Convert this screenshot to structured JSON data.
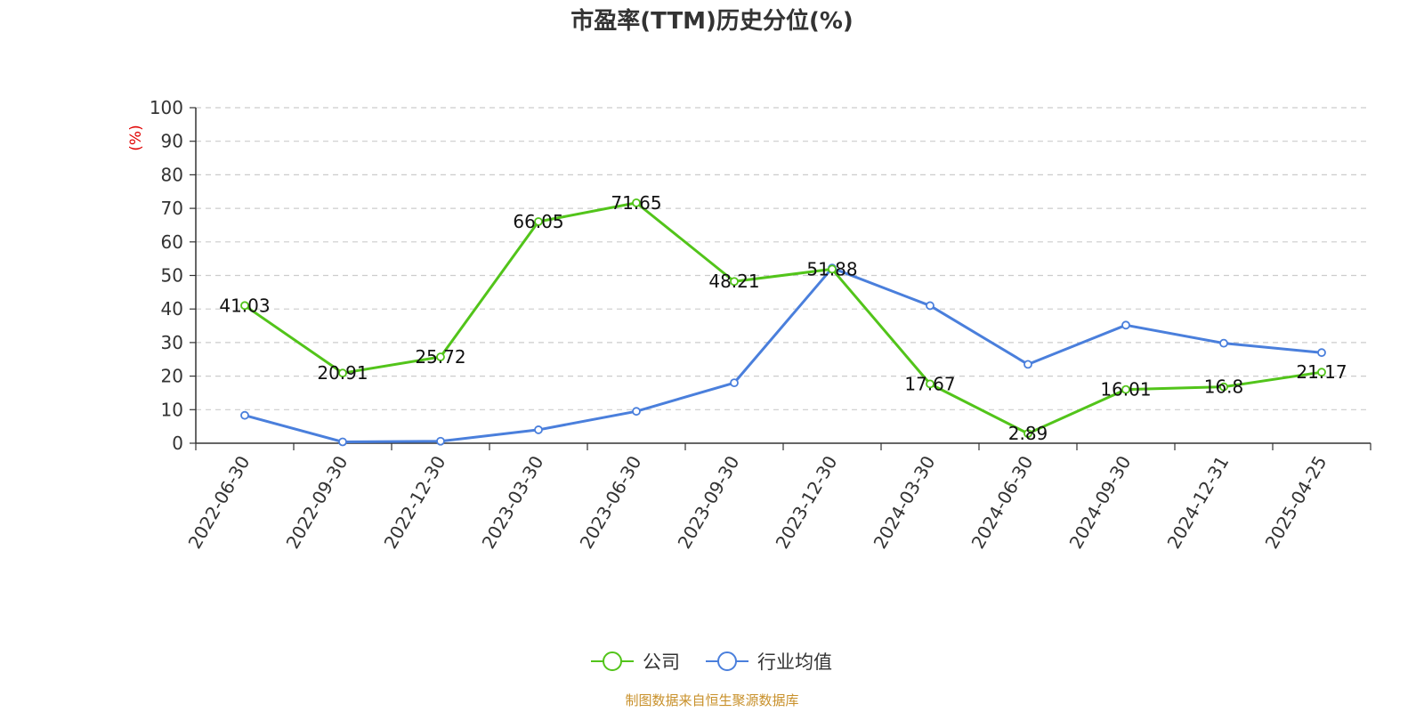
{
  "chart_data": {
    "type": "line",
    "title": "市盈率(TTM)历史分位(%)",
    "ylabel": "(%)",
    "ylim": [
      0,
      100
    ],
    "yticks": [
      0,
      10,
      20,
      30,
      40,
      50,
      60,
      70,
      80,
      90,
      100
    ],
    "grid": true,
    "legend_position": "bottom",
    "categories": [
      "2022-06-30",
      "2022-09-30",
      "2022-12-30",
      "2023-03-30",
      "2023-06-30",
      "2023-09-30",
      "2023-12-30",
      "2024-03-30",
      "2024-06-30",
      "2024-09-30",
      "2024-12-31",
      "2025-04-25"
    ],
    "series": [
      {
        "name": "公司",
        "color": "#52c41a",
        "values": [
          41.03,
          20.91,
          25.72,
          66.05,
          71.65,
          48.21,
          51.88,
          17.67,
          2.89,
          16.01,
          16.8,
          21.17
        ],
        "data_labels": [
          "41.03",
          "20.91",
          "25.72",
          "66.05",
          "71.65",
          "48.21",
          "51.88",
          "17.67",
          "2.89",
          "16.01",
          "16.8",
          "21.17"
        ]
      },
      {
        "name": "行业均值",
        "color": "#4a7fdc",
        "values": [
          8.3,
          0.4,
          0.6,
          4.0,
          9.5,
          18.0,
          52.2,
          41.0,
          23.5,
          35.2,
          29.8,
          27.0
        ]
      }
    ]
  },
  "source_text": "制图数据来自恒生聚源数据库"
}
